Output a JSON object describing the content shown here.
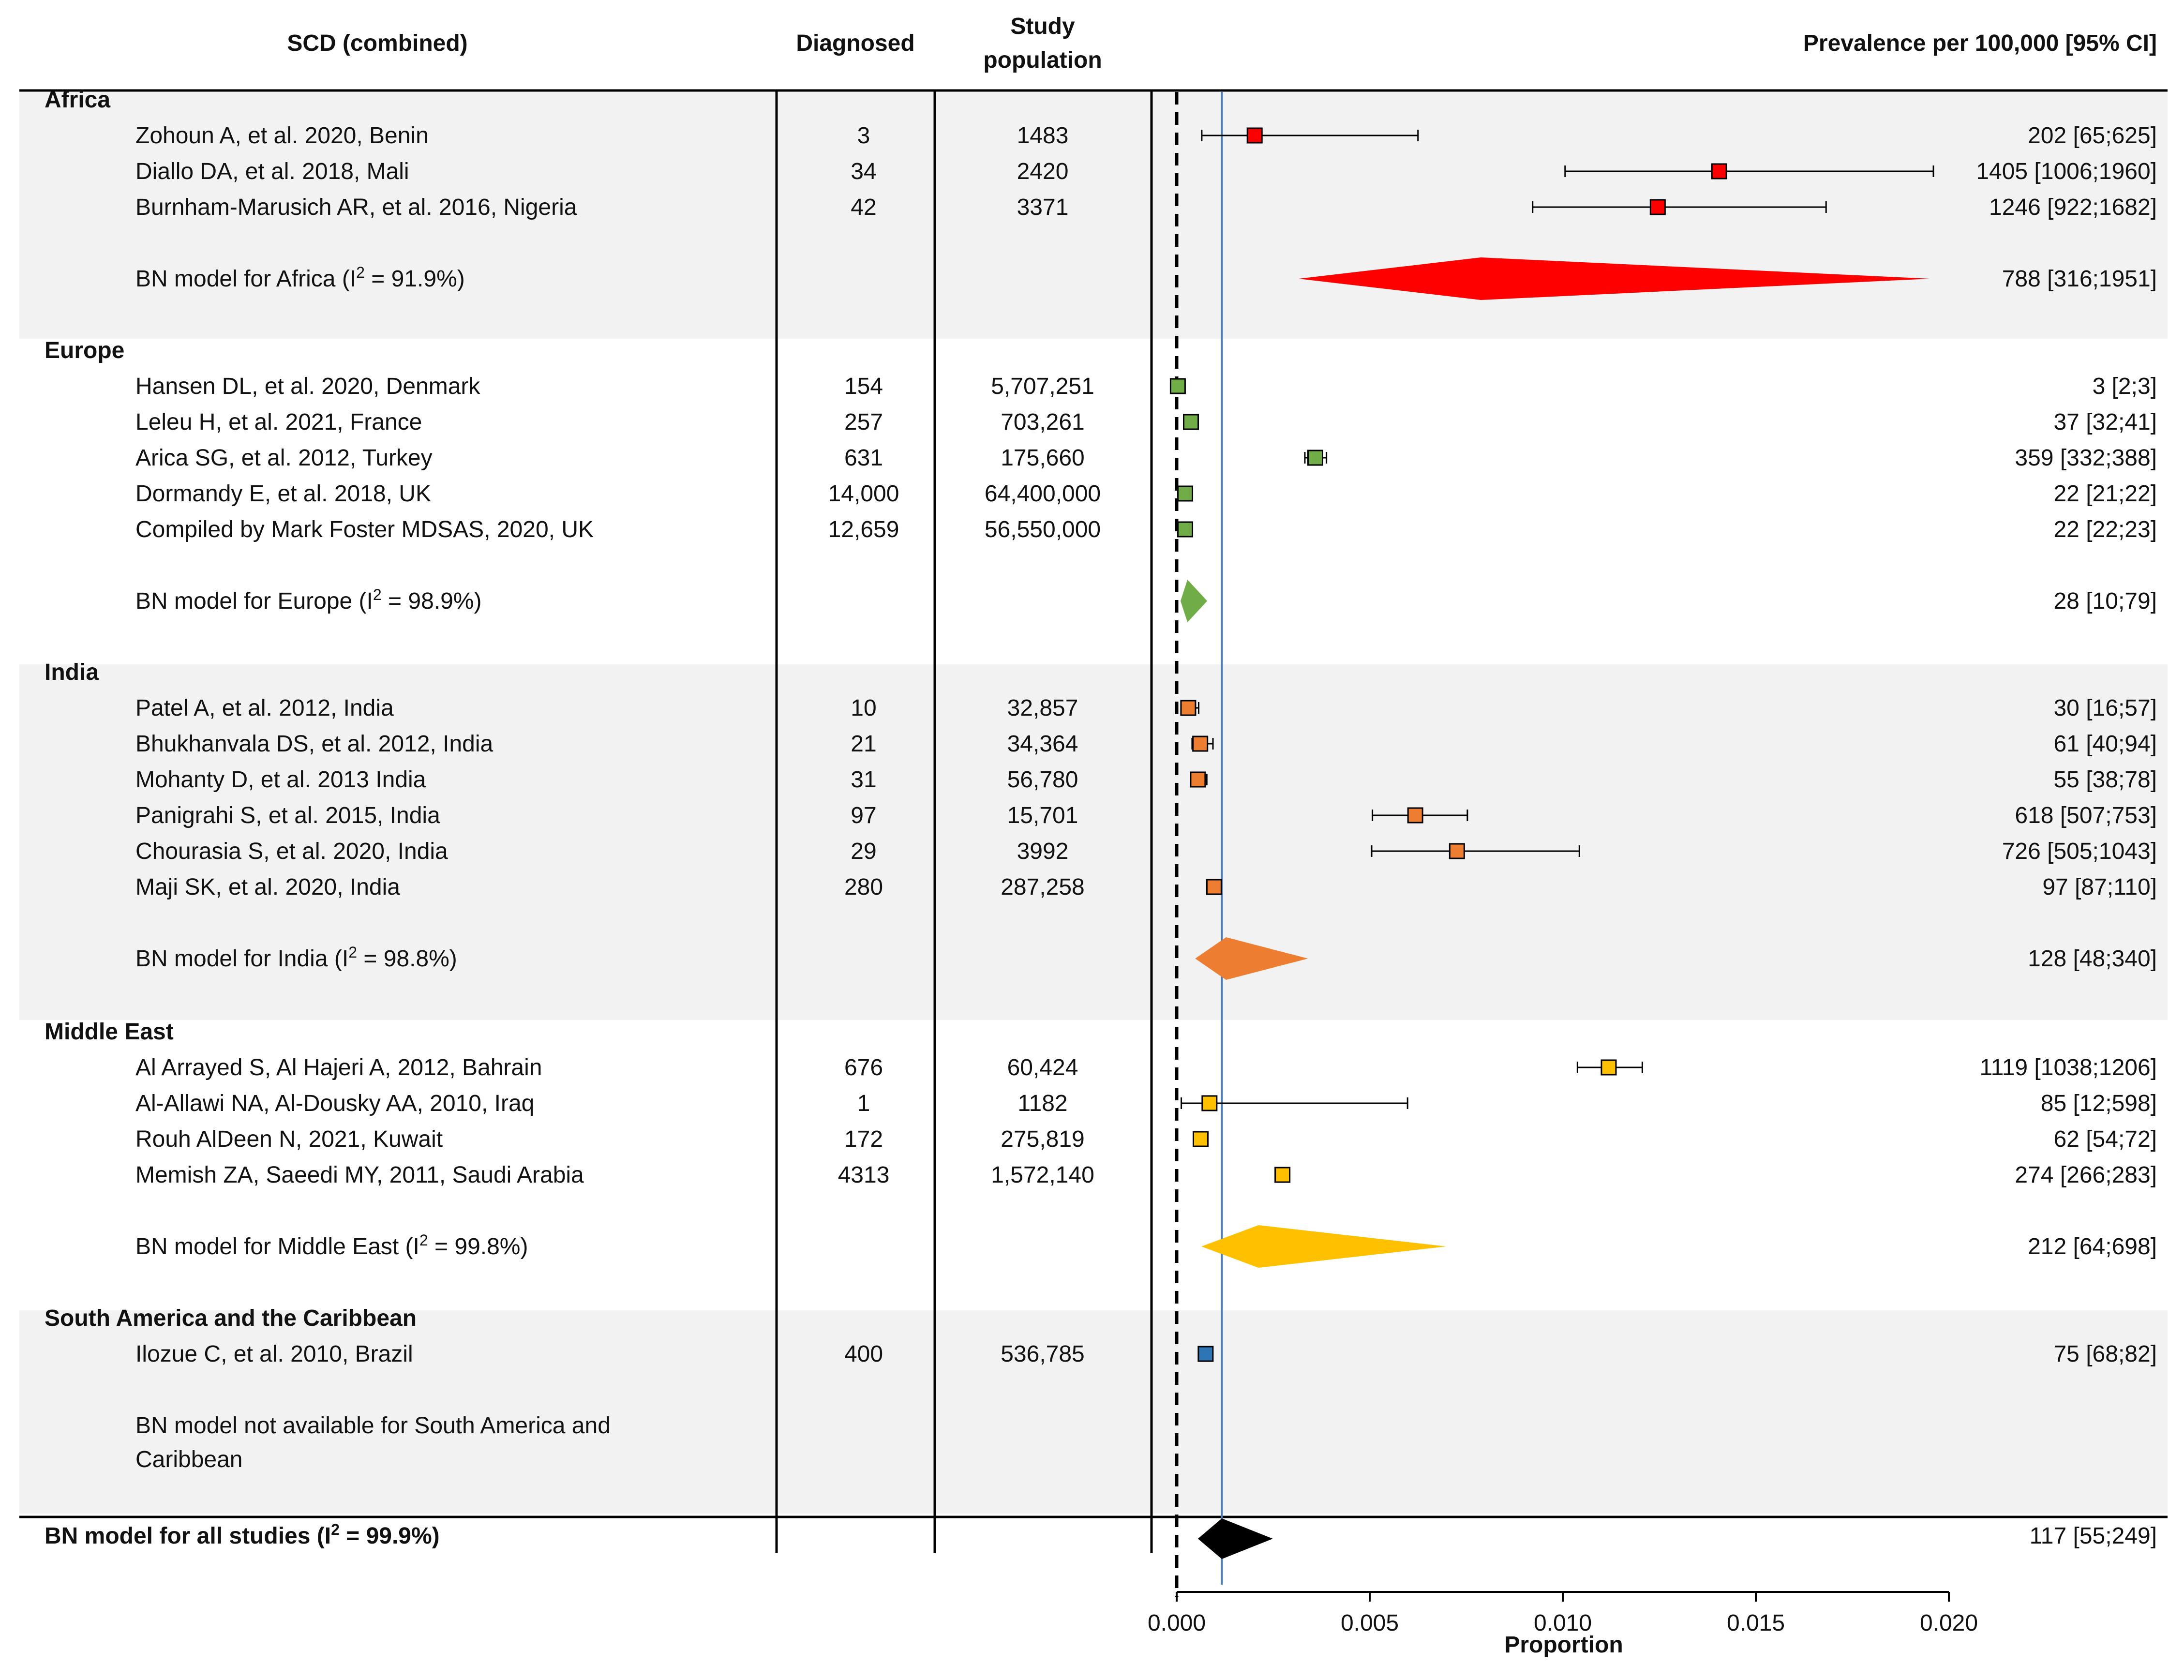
{
  "headers": {
    "title": "SCD (combined)",
    "diagnosed": "Diagnosed",
    "study_population_line1": "Study",
    "study_population_line2": "population",
    "prevalence": "Prevalence per 100,000 [95% CI]"
  },
  "colors": {
    "africa": "#ff0000",
    "europe": "#70ad47",
    "india": "#ed7d31",
    "middle_east": "#ffc000",
    "south_america": "#2e75b6",
    "overall": "#000000",
    "reference_line": "#4a7ebb",
    "band": "#f2f2f2"
  },
  "chart_data": {
    "type": "forest",
    "xlabel": "Proportion",
    "xlim": [
      0.0,
      0.02
    ],
    "xticks": [
      "0.000",
      "0.005",
      "0.010",
      "0.015",
      "0.020"
    ],
    "tick_values": [
      0.0,
      0.005,
      0.01,
      0.015,
      0.02
    ],
    "null_line": 0.0,
    "reference_line": 0.00117,
    "groups": [
      {
        "name": "Africa",
        "color_key": "africa",
        "studies": [
          {
            "label": "Zohoun A, et al. 2020, Benin",
            "diagnosed": "3",
            "population": "1483",
            "estimate": 0.00202,
            "lower": 0.00065,
            "upper": 0.00625,
            "text": "202 [65;625]"
          },
          {
            "label": "Diallo DA, et al. 2018, Mali",
            "diagnosed": "34",
            "population": "2420",
            "estimate": 0.01405,
            "lower": 0.01006,
            "upper": 0.0196,
            "text": "1405 [1006;1960]"
          },
          {
            "label": "Burnham-Marusich AR, et al. 2016, Nigeria",
            "diagnosed": "42",
            "population": "3371",
            "estimate": 0.01246,
            "lower": 0.00922,
            "upper": 0.01682,
            "text": "1246 [922;1682]"
          }
        ],
        "model": {
          "label_prefix": "BN model for Africa (I",
          "sup": "2",
          "label_suffix": " = 91.9%)",
          "estimate": 0.00788,
          "lower": 0.00316,
          "upper": 0.01951,
          "text": "788 [316;1951]"
        }
      },
      {
        "name": "Europe",
        "color_key": "europe",
        "studies": [
          {
            "label": "Hansen DL, et al. 2020, Denmark",
            "diagnosed": "154",
            "population": "5,707,251",
            "estimate": 3e-05,
            "lower": 2e-05,
            "upper": 3e-05,
            "text": "3 [2;3]"
          },
          {
            "label": "Leleu H, et al. 2021, France",
            "diagnosed": "257",
            "population": "703,261",
            "estimate": 0.00037,
            "lower": 0.00032,
            "upper": 0.00041,
            "text": "37 [32;41]"
          },
          {
            "label": "Arica SG, et al. 2012, Turkey",
            "diagnosed": "631",
            "population": "175,660",
            "estimate": 0.00359,
            "lower": 0.00332,
            "upper": 0.00388,
            "text": "359 [332;388]"
          },
          {
            "label": "Dormandy E, et al. 2018, UK",
            "diagnosed": "14,000",
            "population": "64,400,000",
            "estimate": 0.00022,
            "lower": 0.00021,
            "upper": 0.00022,
            "text": "22 [21;22]"
          },
          {
            "label": "Compiled by Mark Foster MDSAS, 2020, UK",
            "diagnosed": "12,659",
            "population": "56,550,000",
            "estimate": 0.00022,
            "lower": 0.00022,
            "upper": 0.00023,
            "text": "22 [22;23]"
          }
        ],
        "model": {
          "label_prefix": "BN model for Europe (I",
          "sup": "2",
          "label_suffix": " = 98.9%)",
          "estimate": 0.00028,
          "lower": 0.0001,
          "upper": 0.00079,
          "text": "28 [10;79]"
        }
      },
      {
        "name": "India",
        "color_key": "india",
        "studies": [
          {
            "label": "Patel A, et al. 2012, India",
            "diagnosed": "10",
            "population": "32,857",
            "estimate": 0.0003,
            "lower": 0.00016,
            "upper": 0.00057,
            "text": "30 [16;57]"
          },
          {
            "label": "Bhukhanvala DS, et al. 2012, India",
            "diagnosed": "21",
            "population": "34,364",
            "estimate": 0.00061,
            "lower": 0.0004,
            "upper": 0.00094,
            "text": "61 [40;94]"
          },
          {
            "label": "Mohanty D, et al. 2013 India",
            "diagnosed": "31",
            "population": "56,780",
            "estimate": 0.00055,
            "lower": 0.00038,
            "upper": 0.00078,
            "text": "55 [38;78]"
          },
          {
            "label": "Panigrahi S, et al. 2015, India",
            "diagnosed": "97",
            "population": "15,701",
            "estimate": 0.00618,
            "lower": 0.00507,
            "upper": 0.00753,
            "text": "618 [507;753]"
          },
          {
            "label": "Chourasia S, et al. 2020, India",
            "diagnosed": "29",
            "population": "3992",
            "estimate": 0.00726,
            "lower": 0.00505,
            "upper": 0.01043,
            "text": "726 [505;1043]"
          },
          {
            "label": "Maji SK, et al. 2020, India",
            "diagnosed": "280",
            "population": "287,258",
            "estimate": 0.00097,
            "lower": 0.00087,
            "upper": 0.0011,
            "text": "97 [87;110]"
          }
        ],
        "model": {
          "label_prefix": "BN model for India (I",
          "sup": "2",
          "label_suffix": " = 98.8%)",
          "estimate": 0.00128,
          "lower": 0.00048,
          "upper": 0.0034,
          "text": "128 [48;340]"
        }
      },
      {
        "name": "Middle East",
        "color_key": "middle_east",
        "studies": [
          {
            "label": "Al Arrayed S, Al Hajeri A, 2012, Bahrain",
            "diagnosed": "676",
            "population": "60,424",
            "estimate": 0.01119,
            "lower": 0.01038,
            "upper": 0.01206,
            "text": "1119 [1038;1206]"
          },
          {
            "label": "Al-Allawi NA, Al-Dousky AA, 2010, Iraq",
            "diagnosed": "1",
            "population": "1182",
            "estimate": 0.00085,
            "lower": 0.00012,
            "upper": 0.00598,
            "text": "85 [12;598]"
          },
          {
            "label": "Rouh AlDeen N, 2021, Kuwait",
            "diagnosed": "172",
            "population": "275,819",
            "estimate": 0.00062,
            "lower": 0.00054,
            "upper": 0.00072,
            "text": "62 [54;72]"
          },
          {
            "label": "Memish ZA, Saeedi MY, 2011, Saudi Arabia",
            "diagnosed": "4313",
            "population": "1,572,140",
            "estimate": 0.00274,
            "lower": 0.00266,
            "upper": 0.00283,
            "text": "274 [266;283]"
          }
        ],
        "model": {
          "label_prefix": "BN model for Middle East (I",
          "sup": "2",
          "label_suffix": " = 99.8%)",
          "estimate": 0.00212,
          "lower": 0.00064,
          "upper": 0.00698,
          "text": "212 [64;698]"
        }
      },
      {
        "name": "South America and the Caribbean",
        "color_key": "south_america",
        "studies": [
          {
            "label": "Ilozue C, et al. 2010, Brazil",
            "diagnosed": "400",
            "population": "536,785",
            "estimate": 0.00075,
            "lower": 0.00068,
            "upper": 0.00082,
            "text": "75 [68;82]"
          }
        ],
        "model_note_line1": "BN model not available for South America and",
        "model_note_line2": "Caribbean"
      }
    ],
    "overall": {
      "label_prefix": "BN model for all studies (I",
      "sup": "2",
      "label_suffix": " = 99.9%)",
      "estimate": 0.00117,
      "lower": 0.00055,
      "upper": 0.00249,
      "text": "117 [55;249]"
    }
  }
}
